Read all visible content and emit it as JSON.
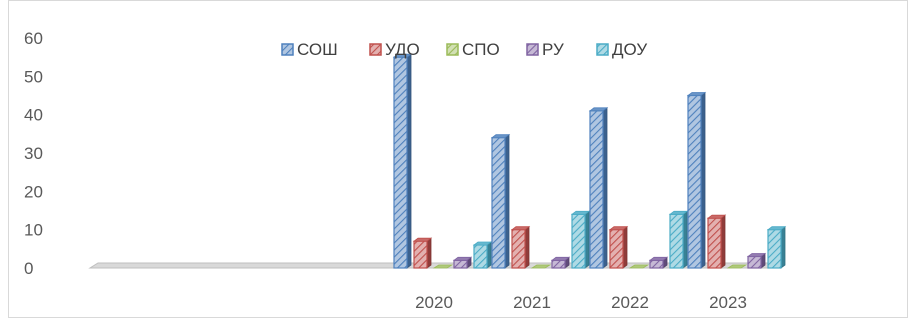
{
  "chart_data": {
    "type": "bar",
    "categories": [
      "2020",
      "2021",
      "2022",
      "2023"
    ],
    "series": [
      {
        "name": "СОШ",
        "values": [
          55,
          34,
          41,
          45
        ],
        "color": "#4f81bd"
      },
      {
        "name": "УДО",
        "values": [
          7,
          10,
          10,
          13
        ],
        "color": "#c0504d"
      },
      {
        "name": "СПО",
        "values": [
          0,
          0,
          0,
          0
        ],
        "color": "#9bbb59"
      },
      {
        "name": "РУ",
        "values": [
          2,
          2,
          2,
          3
        ],
        "color": "#8064a2"
      },
      {
        "name": "ДОУ",
        "values": [
          6,
          14,
          14,
          10
        ],
        "color": "#4bacc6"
      }
    ],
    "ylim": [
      0,
      60
    ],
    "yticks": [
      "0",
      "10",
      "20",
      "30",
      "40",
      "50",
      "60"
    ],
    "legend_position": "top",
    "grid": false,
    "style": "3d-clustered-bar-hatched"
  }
}
